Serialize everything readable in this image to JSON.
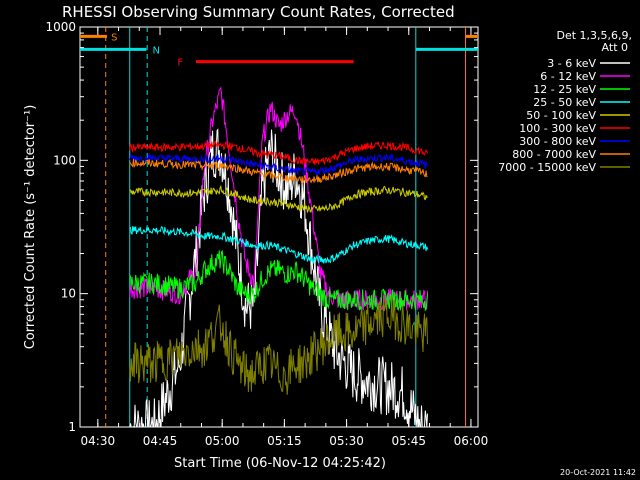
{
  "chart_data": {
    "type": "line",
    "title": "RHESSI Observing Summary Count Rates, Corrected",
    "xlabel": "Start Time (06-Nov-12 04:25:42)",
    "ylabel": "Corrected Count Rate (s⁻¹ detector⁻¹)",
    "yscale": "log",
    "ylim": [
      1,
      1000
    ],
    "xlim_minutes": [
      0,
      96
    ],
    "x_ticks": [
      "04:30",
      "04:45",
      "05:00",
      "05:15",
      "05:30",
      "05:45",
      "06:00"
    ],
    "x_tick_minutes": [
      4.3,
      19.3,
      34.3,
      49.3,
      64.3,
      79.3,
      94.3
    ],
    "y_ticks": [
      "1",
      "10",
      "100",
      "1000"
    ],
    "y_tick_values": [
      1,
      10,
      100,
      1000
    ],
    "legend_title_1": "Det 1,3,5,6,9,",
    "legend_title_2": "Att 0",
    "legend_position": "right",
    "timestamp": "20-Oct-2021 11:42",
    "annotations": [
      {
        "label": "S",
        "color": "#ff8000",
        "x_min": 0,
        "x_max": 6.5,
        "y": 850,
        "type": "bar"
      },
      {
        "label": "S",
        "color": "#ff8000",
        "x_min": 93,
        "x_max": 96,
        "y": 850,
        "type": "bar"
      },
      {
        "label": "N",
        "color": "#00e0e0",
        "x_min": 0,
        "x_max": 16,
        "y": 680,
        "type": "bar"
      },
      {
        "label": "N",
        "color": "#00e0e0",
        "x_min": 81,
        "x_max": 96,
        "y": 680,
        "type": "bar"
      },
      {
        "label": "F",
        "color": "#ff0000",
        "x_min": 28,
        "x_max": 66,
        "y": 550,
        "type": "bar"
      }
    ],
    "label_S": "S",
    "label_N": "N",
    "label_F": "F",
    "vlines": [
      {
        "x": 6.2,
        "color": "#ff8000"
      },
      {
        "x": 12,
        "color": "#00e0e0",
        "solid": true
      },
      {
        "x": 16.2,
        "color": "#00e0e0"
      },
      {
        "x": 81,
        "color": "#00e0e0",
        "solid": true
      },
      {
        "x": 93,
        "color": "#ff8000",
        "solid": true
      },
      {
        "x": 97.2,
        "color": "#00e0e0"
      }
    ],
    "time_x": [
      12,
      18,
      24,
      28,
      30,
      32,
      34,
      36,
      38,
      40,
      42,
      44,
      46,
      48,
      50,
      52,
      54,
      56,
      58,
      60,
      62,
      64,
      66,
      70,
      74,
      78,
      82,
      84
    ],
    "series": [
      {
        "name": "3 - 6 keV",
        "color": "#ffffff",
        "values": [
          1.0,
          1.0,
          3,
          20,
          60,
          120,
          120,
          60,
          20,
          8,
          8,
          60,
          120,
          80,
          60,
          80,
          50,
          20,
          8,
          5,
          3.5,
          3,
          2.5,
          2.2,
          2,
          1.8,
          1,
          1
        ]
      },
      {
        "name": "6 - 12 keV",
        "color": "#ff00ff",
        "values": [
          11,
          11,
          10,
          15,
          90,
          200,
          330,
          120,
          40,
          17,
          12,
          140,
          250,
          180,
          220,
          240,
          110,
          40,
          14,
          10,
          9,
          9,
          9,
          9,
          9,
          9,
          9,
          9
        ]
      },
      {
        "name": "12 - 25 keV",
        "color": "#00ff00",
        "values": [
          12,
          12,
          11,
          12,
          15,
          17,
          18,
          15,
          11,
          10,
          10,
          13,
          15,
          15,
          14,
          15,
          13,
          11,
          10,
          9,
          9,
          9,
          9,
          9,
          9,
          9,
          9,
          9
        ]
      },
      {
        "name": "25 - 50 keV",
        "color": "#00ffff",
        "values": [
          30,
          30,
          29,
          28,
          27,
          27,
          27,
          26,
          25,
          24,
          23,
          23,
          23,
          22,
          21,
          20,
          19,
          18,
          18,
          18,
          19,
          21,
          23,
          25,
          26,
          24,
          23,
          22
        ]
      },
      {
        "name": "50 - 100 keV",
        "color": "#cccc00",
        "values": [
          58,
          58,
          57,
          57,
          58,
          59,
          60,
          58,
          55,
          52,
          50,
          50,
          49,
          48,
          47,
          45,
          44,
          43,
          43,
          44,
          46,
          50,
          55,
          58,
          60,
          58,
          55,
          52
        ]
      },
      {
        "name": "100 - 300 keV",
        "color": "#ff0000",
        "values": [
          125,
          125,
          126,
          127,
          128,
          130,
          130,
          128,
          125,
          120,
          115,
          112,
          110,
          108,
          105,
          100,
          98,
          97,
          98,
          102,
          108,
          115,
          122,
          128,
          130,
          125,
          118,
          110
        ]
      },
      {
        "name": "300 - 800 keV",
        "color": "#0000ff",
        "values": [
          105,
          104,
          103,
          102,
          102,
          103,
          104,
          102,
          99,
          96,
          93,
          91,
          89,
          87,
          85,
          83,
          82,
          82,
          83,
          86,
          90,
          95,
          100,
          104,
          105,
          100,
          95,
          90
        ]
      },
      {
        "name": "800 - 7000 keV",
        "color": "#ff8000",
        "values": [
          96,
          95,
          93,
          92,
          91,
          91,
          92,
          90,
          87,
          84,
          81,
          79,
          77,
          76,
          74,
          73,
          72,
          72,
          73,
          75,
          78,
          82,
          86,
          89,
          90,
          86,
          82,
          78
        ]
      },
      {
        "name": "7000 - 15000 keV",
        "color": "#808000",
        "values": [
          3,
          3,
          3.5,
          4,
          4,
          5,
          6,
          4,
          3,
          2.5,
          2.5,
          3,
          3,
          2.5,
          2.5,
          3,
          3,
          3.5,
          4,
          4.5,
          5,
          5,
          5,
          6,
          7,
          6,
          5,
          5
        ]
      }
    ]
  }
}
